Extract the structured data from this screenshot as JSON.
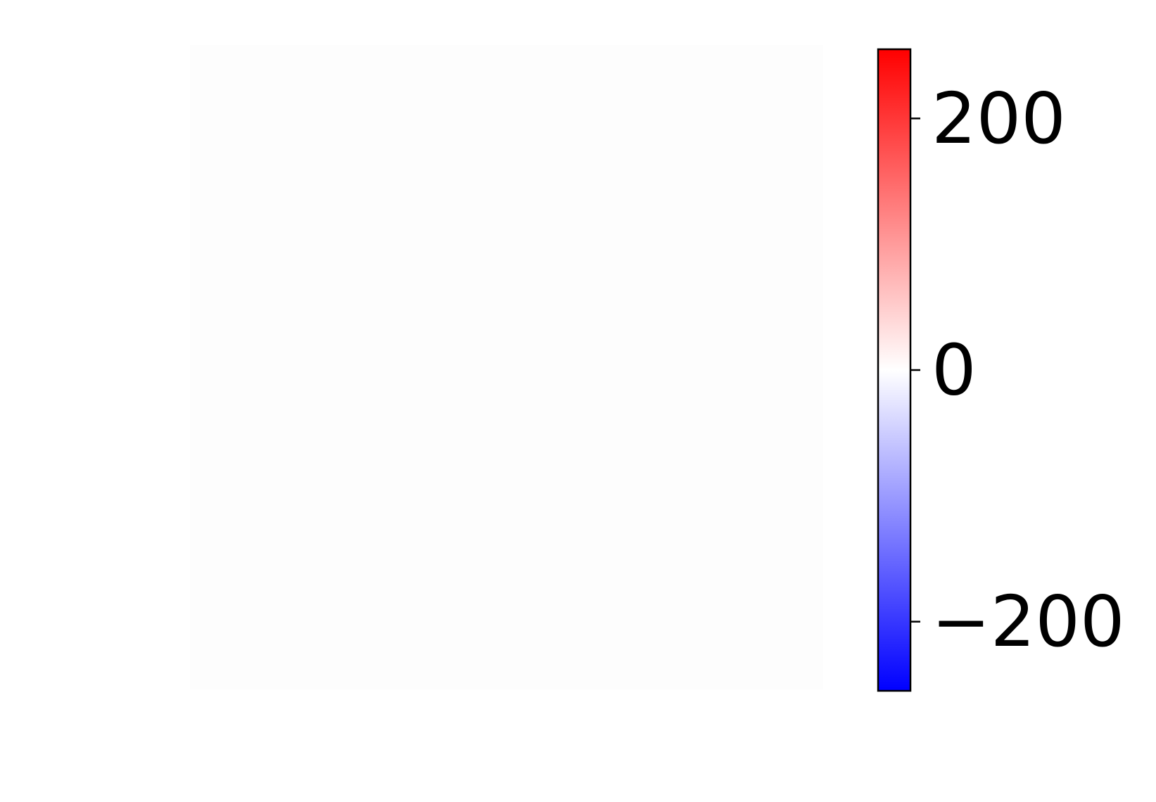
{
  "chart_data": {
    "type": "heatmap",
    "title": "",
    "xlabel": "",
    "ylabel": "",
    "grid": false,
    "heatmap": {
      "fill_color": "#fdfdfd",
      "values_visible": false
    },
    "colorbar": {
      "colormap": "bwr",
      "vmin": -255,
      "vmax": 255,
      "ticks": [
        {
          "value": 200,
          "label": "200"
        },
        {
          "value": 0,
          "label": "0"
        },
        {
          "value": -200,
          "label": "−200"
        }
      ],
      "low_color": "#0000ff",
      "mid_color": "#ffffff",
      "high_color": "#ff0000"
    }
  }
}
